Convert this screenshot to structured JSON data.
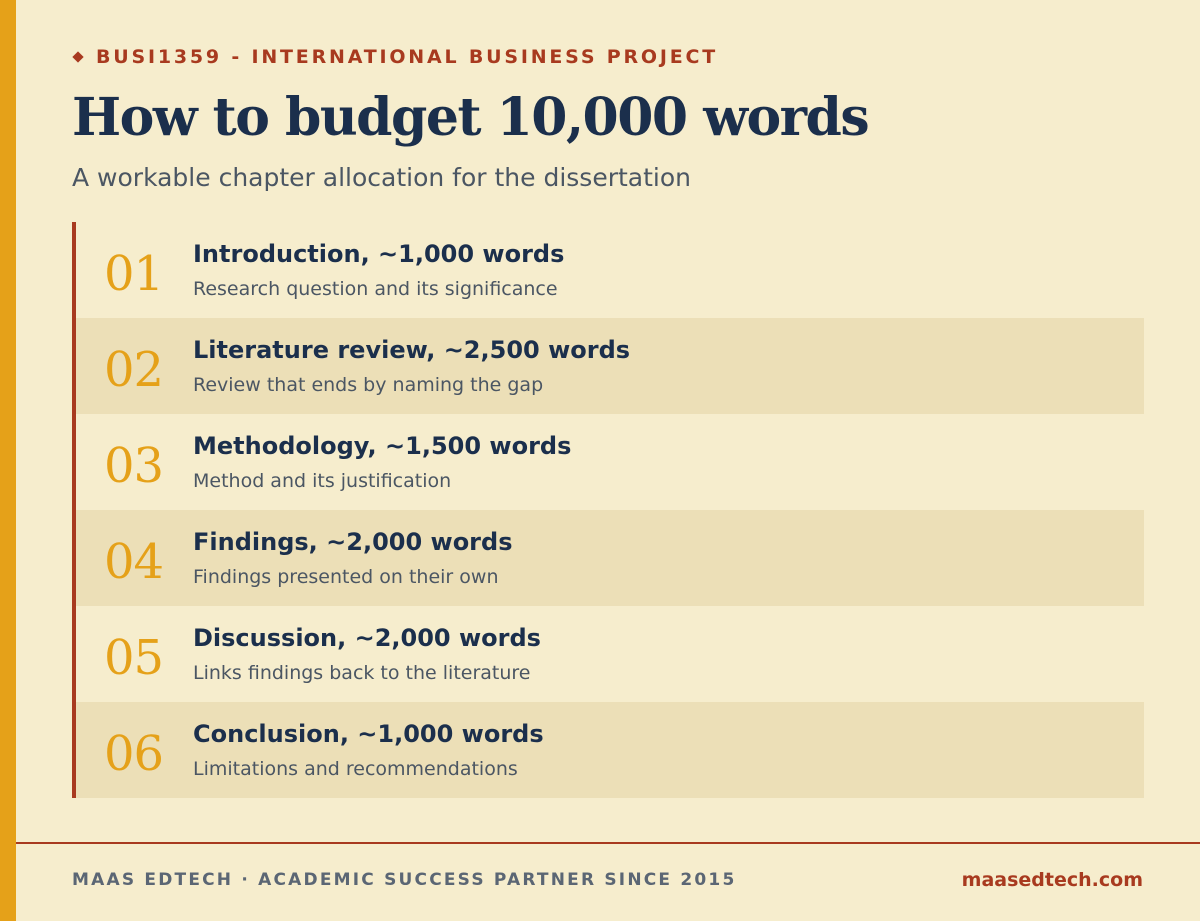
{
  "header": {
    "eyebrow": "BUSI1359 - INTERNATIONAL BUSINESS PROJECT",
    "title": "How to budget 10,000 words",
    "subtitle": "A workable chapter allocation for the dissertation"
  },
  "chapters": [
    {
      "number": "01",
      "heading": "Introduction, ~1,000 words",
      "description": "Research question and its significance"
    },
    {
      "number": "02",
      "heading": "Literature review, ~2,500 words",
      "description": "Review that ends by naming the gap"
    },
    {
      "number": "03",
      "heading": "Methodology, ~1,500 words",
      "description": "Method and its justification"
    },
    {
      "number": "04",
      "heading": "Findings, ~2,000 words",
      "description": "Findings presented on their own"
    },
    {
      "number": "05",
      "heading": "Discussion, ~2,000 words",
      "description": "Links findings back to the literature"
    },
    {
      "number": "06",
      "heading": "Conclusion, ~1,000 words",
      "description": "Limitations and recommendations"
    }
  ],
  "footer": {
    "tagline": "MAAS EDTECH · ACADEMIC SUCCESS PARTNER SINCE 2015",
    "website": "maasedtech.com"
  },
  "colors": {
    "background": "#f6edcd",
    "accent_gold": "#e5a119",
    "accent_red": "#a83a1f",
    "navy": "#1b2f4c",
    "row_shade": "#ecdfb7"
  },
  "icons": {
    "eyebrow_marker": "diamond-icon"
  }
}
